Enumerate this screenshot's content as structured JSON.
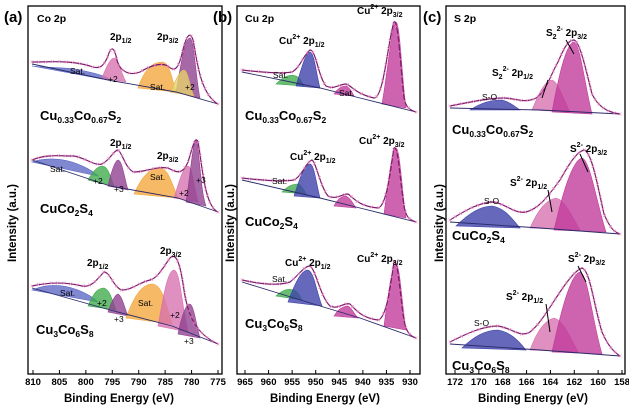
{
  "figure": {
    "panels": [
      {
        "id": "a",
        "label": "(a)",
        "title": "Co 2p",
        "xlabel": "Binding Energy (eV)",
        "ylabel": "Intensity (a.u.)",
        "x_ticks": [
          "810",
          "805",
          "800",
          "795",
          "790",
          "785",
          "780",
          "775"
        ],
        "samples": [
          "Cu0.33Co0.67S2",
          "CuCo2S4",
          "Cu3Co6S8"
        ],
        "annotations": [
          "2p1/2",
          "2p3/2",
          "Sat.",
          "+2",
          "+3"
        ]
      },
      {
        "id": "b",
        "label": "(b)",
        "title": "Cu 2p",
        "xlabel": "Binding Energy (eV)",
        "ylabel": "Intensity (a.u.)",
        "x_ticks": [
          "965",
          "960",
          "955",
          "950",
          "945",
          "940",
          "935",
          "930"
        ],
        "samples": [
          "Cu0.33Co0.67S2",
          "CuCo2S4",
          "Cu3Co6S8"
        ],
        "annotations": [
          "Cu2+ 2p1/2",
          "Cu2+ 2p3/2",
          "Sat."
        ]
      },
      {
        "id": "c",
        "label": "(c)",
        "title": "S 2p",
        "xlabel": "Binding Energy (eV)",
        "ylabel": "Intensity (a.u.)",
        "x_ticks": [
          "172",
          "170",
          "168",
          "166",
          "164",
          "162",
          "160",
          "158"
        ],
        "samples": [
          "Cu0.33Co0.67S2",
          "CuCo2S4",
          "Cu3Co6S8"
        ],
        "annotations": [
          "S2 2- 2p3/2",
          "S2 2- 2p1/2",
          "S2- 2p3/2",
          "S2- 2p1/2",
          "S-O"
        ]
      }
    ],
    "colors": {
      "sat_blue": "#5b66c4",
      "green": "#3daa4c",
      "orange": "#f3a53a",
      "purple": "#8e3d8e",
      "pink": "#d66fae",
      "magenta": "#c0399a",
      "navy": "#3b3fa8",
      "data_points": "#e87fbf",
      "envelope": "#7a1d6a"
    }
  },
  "chart_data": [
    {
      "type": "line",
      "title": "Co 2p",
      "xlabel": "Binding Energy (eV)",
      "ylabel": "Intensity (a.u.)",
      "xlim": [
        812,
        775
      ],
      "x_reversed": true,
      "y_ticks_shown": false,
      "series": [
        {
          "name": "Cu0.33Co0.67S2",
          "x": [
            812,
            805,
            800,
            797,
            795.6,
            793,
            790,
            786,
            783,
            781,
            780,
            779,
            777,
            775
          ],
          "values": [
            0.25,
            0.23,
            0.22,
            0.32,
            0.55,
            0.27,
            0.22,
            0.31,
            0.38,
            0.62,
            0.93,
            0.52,
            0.12,
            0.05
          ]
        },
        {
          "name": "CuCo2S4",
          "x": [
            812,
            805,
            800,
            797,
            795.6,
            793,
            790,
            786,
            783,
            781,
            779.5,
            778.6,
            777,
            775
          ],
          "values": [
            0.33,
            0.4,
            0.38,
            0.4,
            0.62,
            0.45,
            0.36,
            0.42,
            0.44,
            0.58,
            0.72,
            0.82,
            0.25,
            0.05
          ]
        },
        {
          "name": "Cu3Co6S8",
          "x": [
            812,
            805,
            800,
            797,
            795.6,
            793,
            790,
            786,
            783,
            781,
            779,
            777,
            775
          ],
          "values": [
            0.35,
            0.33,
            0.32,
            0.4,
            0.58,
            0.42,
            0.33,
            0.48,
            0.72,
            0.62,
            0.3,
            0.12,
            0.05
          ]
        }
      ]
    },
    {
      "type": "line",
      "title": "Cu 2p",
      "xlabel": "Binding Energy (eV)",
      "ylabel": "Intensity (a.u.)",
      "xlim": [
        967,
        928
      ],
      "x_reversed": true,
      "y_ticks_shown": false,
      "series": [
        {
          "name": "Cu0.33Co0.67S2",
          "x": [
            967,
            960,
            955,
            952,
            950,
            947,
            944,
            940,
            935,
            933,
            932.3,
            931,
            928
          ],
          "values": [
            0.1,
            0.12,
            0.18,
            0.45,
            0.22,
            0.12,
            0.17,
            0.1,
            0.12,
            0.4,
            1.0,
            0.3,
            0.05
          ]
        },
        {
          "name": "CuCo2S4",
          "x": [
            967,
            960,
            955,
            952,
            950,
            947,
            944,
            940,
            935,
            933,
            932.3,
            931,
            928
          ],
          "values": [
            0.1,
            0.12,
            0.2,
            0.5,
            0.25,
            0.12,
            0.18,
            0.1,
            0.12,
            0.38,
            0.95,
            0.28,
            0.05
          ]
        },
        {
          "name": "Cu3Co6S8",
          "x": [
            967,
            960,
            955,
            952,
            950,
            947,
            944,
            940,
            935,
            933,
            932.3,
            931,
            928
          ],
          "values": [
            0.1,
            0.12,
            0.22,
            0.58,
            0.28,
            0.12,
            0.2,
            0.1,
            0.12,
            0.4,
            0.98,
            0.3,
            0.05
          ]
        }
      ]
    },
    {
      "type": "line",
      "title": "S 2p",
      "xlabel": "Binding Energy (eV)",
      "ylabel": "Intensity (a.u.)",
      "xlim": [
        173,
        158
      ],
      "x_reversed": true,
      "y_ticks_shown": false,
      "series": [
        {
          "name": "Cu0.33Co0.67S2",
          "x": [
            173,
            170,
            168.5,
            167,
            165,
            164,
            163,
            162.3,
            161,
            160,
            158
          ],
          "values": [
            0.1,
            0.13,
            0.15,
            0.14,
            0.22,
            0.42,
            0.8,
            0.95,
            0.55,
            0.2,
            0.05
          ]
        },
        {
          "name": "CuCo2S4",
          "x": [
            173,
            170,
            168.8,
            167,
            165,
            164,
            163,
            161.8,
            160.5,
            159.5,
            158
          ],
          "values": [
            0.1,
            0.2,
            0.26,
            0.2,
            0.25,
            0.4,
            0.7,
            0.95,
            0.6,
            0.25,
            0.05
          ]
        },
        {
          "name": "Cu3Co6S8",
          "x": [
            173,
            170,
            168.5,
            167,
            165,
            164,
            163,
            161.9,
            160.5,
            159.5,
            158
          ],
          "values": [
            0.1,
            0.15,
            0.2,
            0.17,
            0.25,
            0.42,
            0.72,
            0.98,
            0.5,
            0.2,
            0.05
          ]
        }
      ]
    }
  ]
}
